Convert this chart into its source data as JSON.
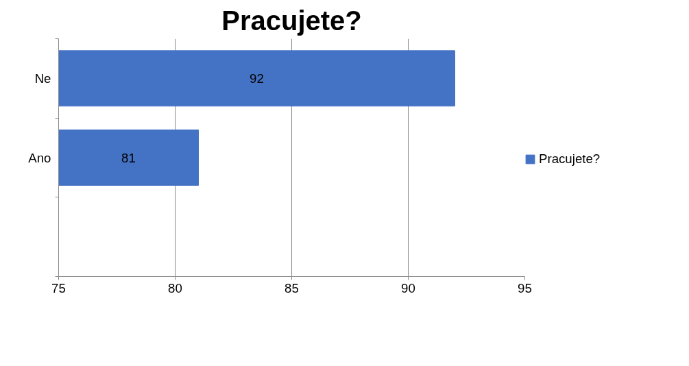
{
  "chart_data": {
    "type": "bar",
    "orientation": "horizontal",
    "title": "Pracujete?",
    "categories": [
      "Ne",
      "Ano",
      null
    ],
    "series": [
      {
        "name": "Pracujete?",
        "color": "#4472c4",
        "values": [
          92,
          81,
          null
        ]
      }
    ],
    "xlim": [
      75,
      95
    ],
    "xticks": [
      75,
      80,
      85,
      90,
      95
    ],
    "grid": "x",
    "legend": "right",
    "data_labels": true
  }
}
